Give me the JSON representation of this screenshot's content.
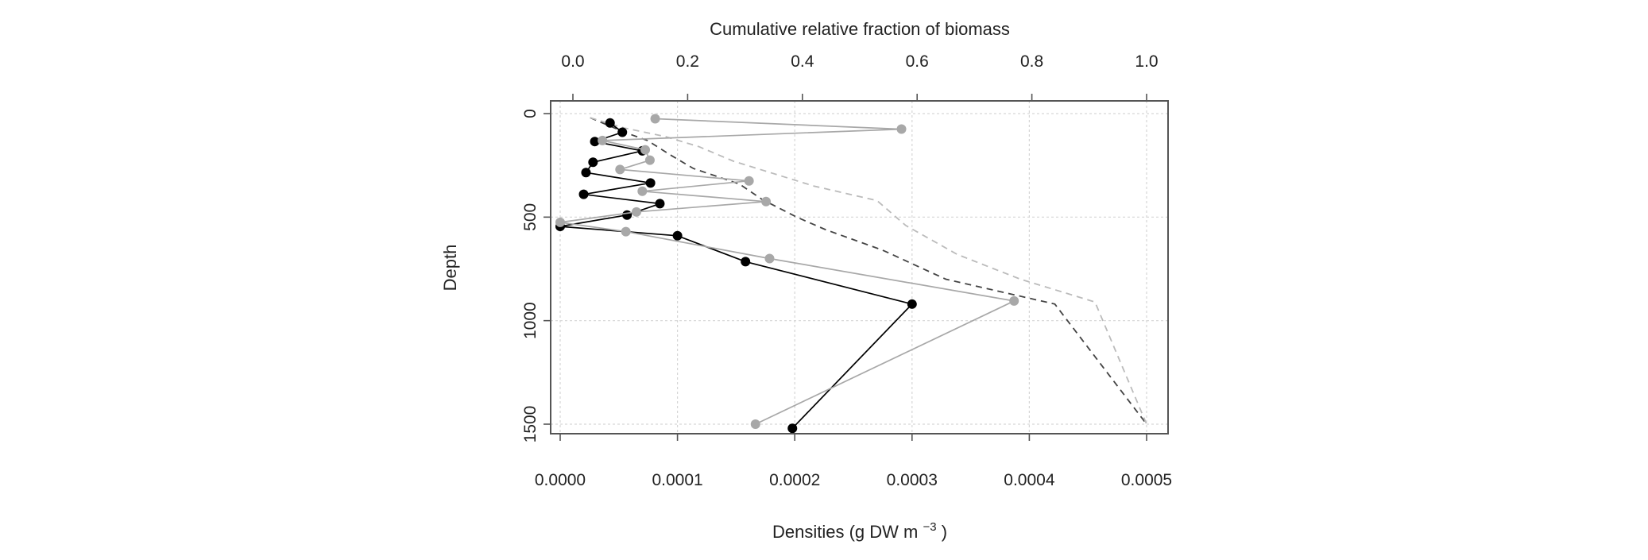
{
  "chart_data": {
    "type": "line",
    "orientation": "depth-profile",
    "x_bottom": {
      "label_main": "Densities (g DW  m",
      "label_sup": "−3",
      "label_end": " )",
      "range": [
        0,
        0.0005
      ],
      "ticks": [
        0,
        0.0001,
        0.0002,
        0.0003,
        0.0004,
        0.0005
      ],
      "tick_labels": [
        "0.0000",
        "0.0001",
        "0.0002",
        "0.0003",
        "0.0004",
        "0.0005"
      ]
    },
    "x_top": {
      "label": "Cumulative relative fraction of biomass",
      "range": [
        0,
        1
      ],
      "ticks": [
        0,
        0.2,
        0.4,
        0.6,
        0.8,
        1.0
      ],
      "tick_labels": [
        "0.0",
        "0.2",
        "0.4",
        "0.6",
        "0.8",
        "1.0"
      ]
    },
    "y": {
      "label": "Depth",
      "range": [
        1500,
        0
      ],
      "ticks": [
        0,
        500,
        1000,
        1500
      ],
      "tick_labels": [
        "0",
        "500",
        "1000",
        "1500"
      ],
      "reversed": true
    },
    "grid": true,
    "series": [
      {
        "style": "solid-points",
        "axis": "bottom",
        "color": "#000000",
        "points": [
          [
            4.25e-05,
            45
          ],
          [
            5.3e-05,
            90
          ],
          [
            2.95e-05,
            135
          ],
          [
            7e-05,
            180
          ],
          [
            2.8e-05,
            235
          ],
          [
            2.2e-05,
            285
          ],
          [
            7.7e-05,
            335
          ],
          [
            2e-05,
            390
          ],
          [
            8.5e-05,
            435
          ],
          [
            5.7e-05,
            490
          ],
          [
            0.0,
            545
          ],
          [
            0.0001,
            590
          ],
          [
            0.000158,
            715
          ],
          [
            0.0003,
            920
          ],
          [
            0.000198,
            1520
          ]
        ]
      },
      {
        "style": "solid-points",
        "axis": "bottom",
        "color": "#a8a8a8",
        "points": [
          [
            8.1e-05,
            25
          ],
          [
            0.000291,
            75
          ],
          [
            3.6e-05,
            130
          ],
          [
            7.25e-05,
            175
          ],
          [
            7.65e-05,
            225
          ],
          [
            5.1e-05,
            270
          ],
          [
            0.000161,
            325
          ],
          [
            7e-05,
            375
          ],
          [
            0.0001755,
            425
          ],
          [
            6.5e-05,
            475
          ],
          [
            0.0,
            525
          ],
          [
            5.6e-05,
            570
          ],
          [
            0.0001785,
            700
          ],
          [
            0.000387,
            905
          ],
          [
            0.0001665,
            1500
          ]
        ]
      },
      {
        "style": "dashed",
        "axis": "top",
        "color": "#444444",
        "points": [
          [
            0.03,
            20
          ],
          [
            0.09,
            90
          ],
          [
            0.13,
            130
          ],
          [
            0.17,
            200
          ],
          [
            0.21,
            265
          ],
          [
            0.29,
            340
          ],
          [
            0.33,
            415
          ],
          [
            0.39,
            500
          ],
          [
            0.44,
            560
          ],
          [
            0.54,
            660
          ],
          [
            0.65,
            800
          ],
          [
            0.84,
            920
          ],
          [
            1.0,
            1500
          ]
        ]
      },
      {
        "style": "dashed",
        "axis": "top",
        "color": "#bbbbbb",
        "points": [
          [
            0.03,
            20
          ],
          [
            0.09,
            70
          ],
          [
            0.16,
            110
          ],
          [
            0.22,
            160
          ],
          [
            0.28,
            230
          ],
          [
            0.42,
            350
          ],
          [
            0.53,
            420
          ],
          [
            0.58,
            540
          ],
          [
            0.67,
            680
          ],
          [
            0.78,
            800
          ],
          [
            0.91,
            910
          ],
          [
            1.0,
            1500
          ]
        ]
      }
    ]
  }
}
